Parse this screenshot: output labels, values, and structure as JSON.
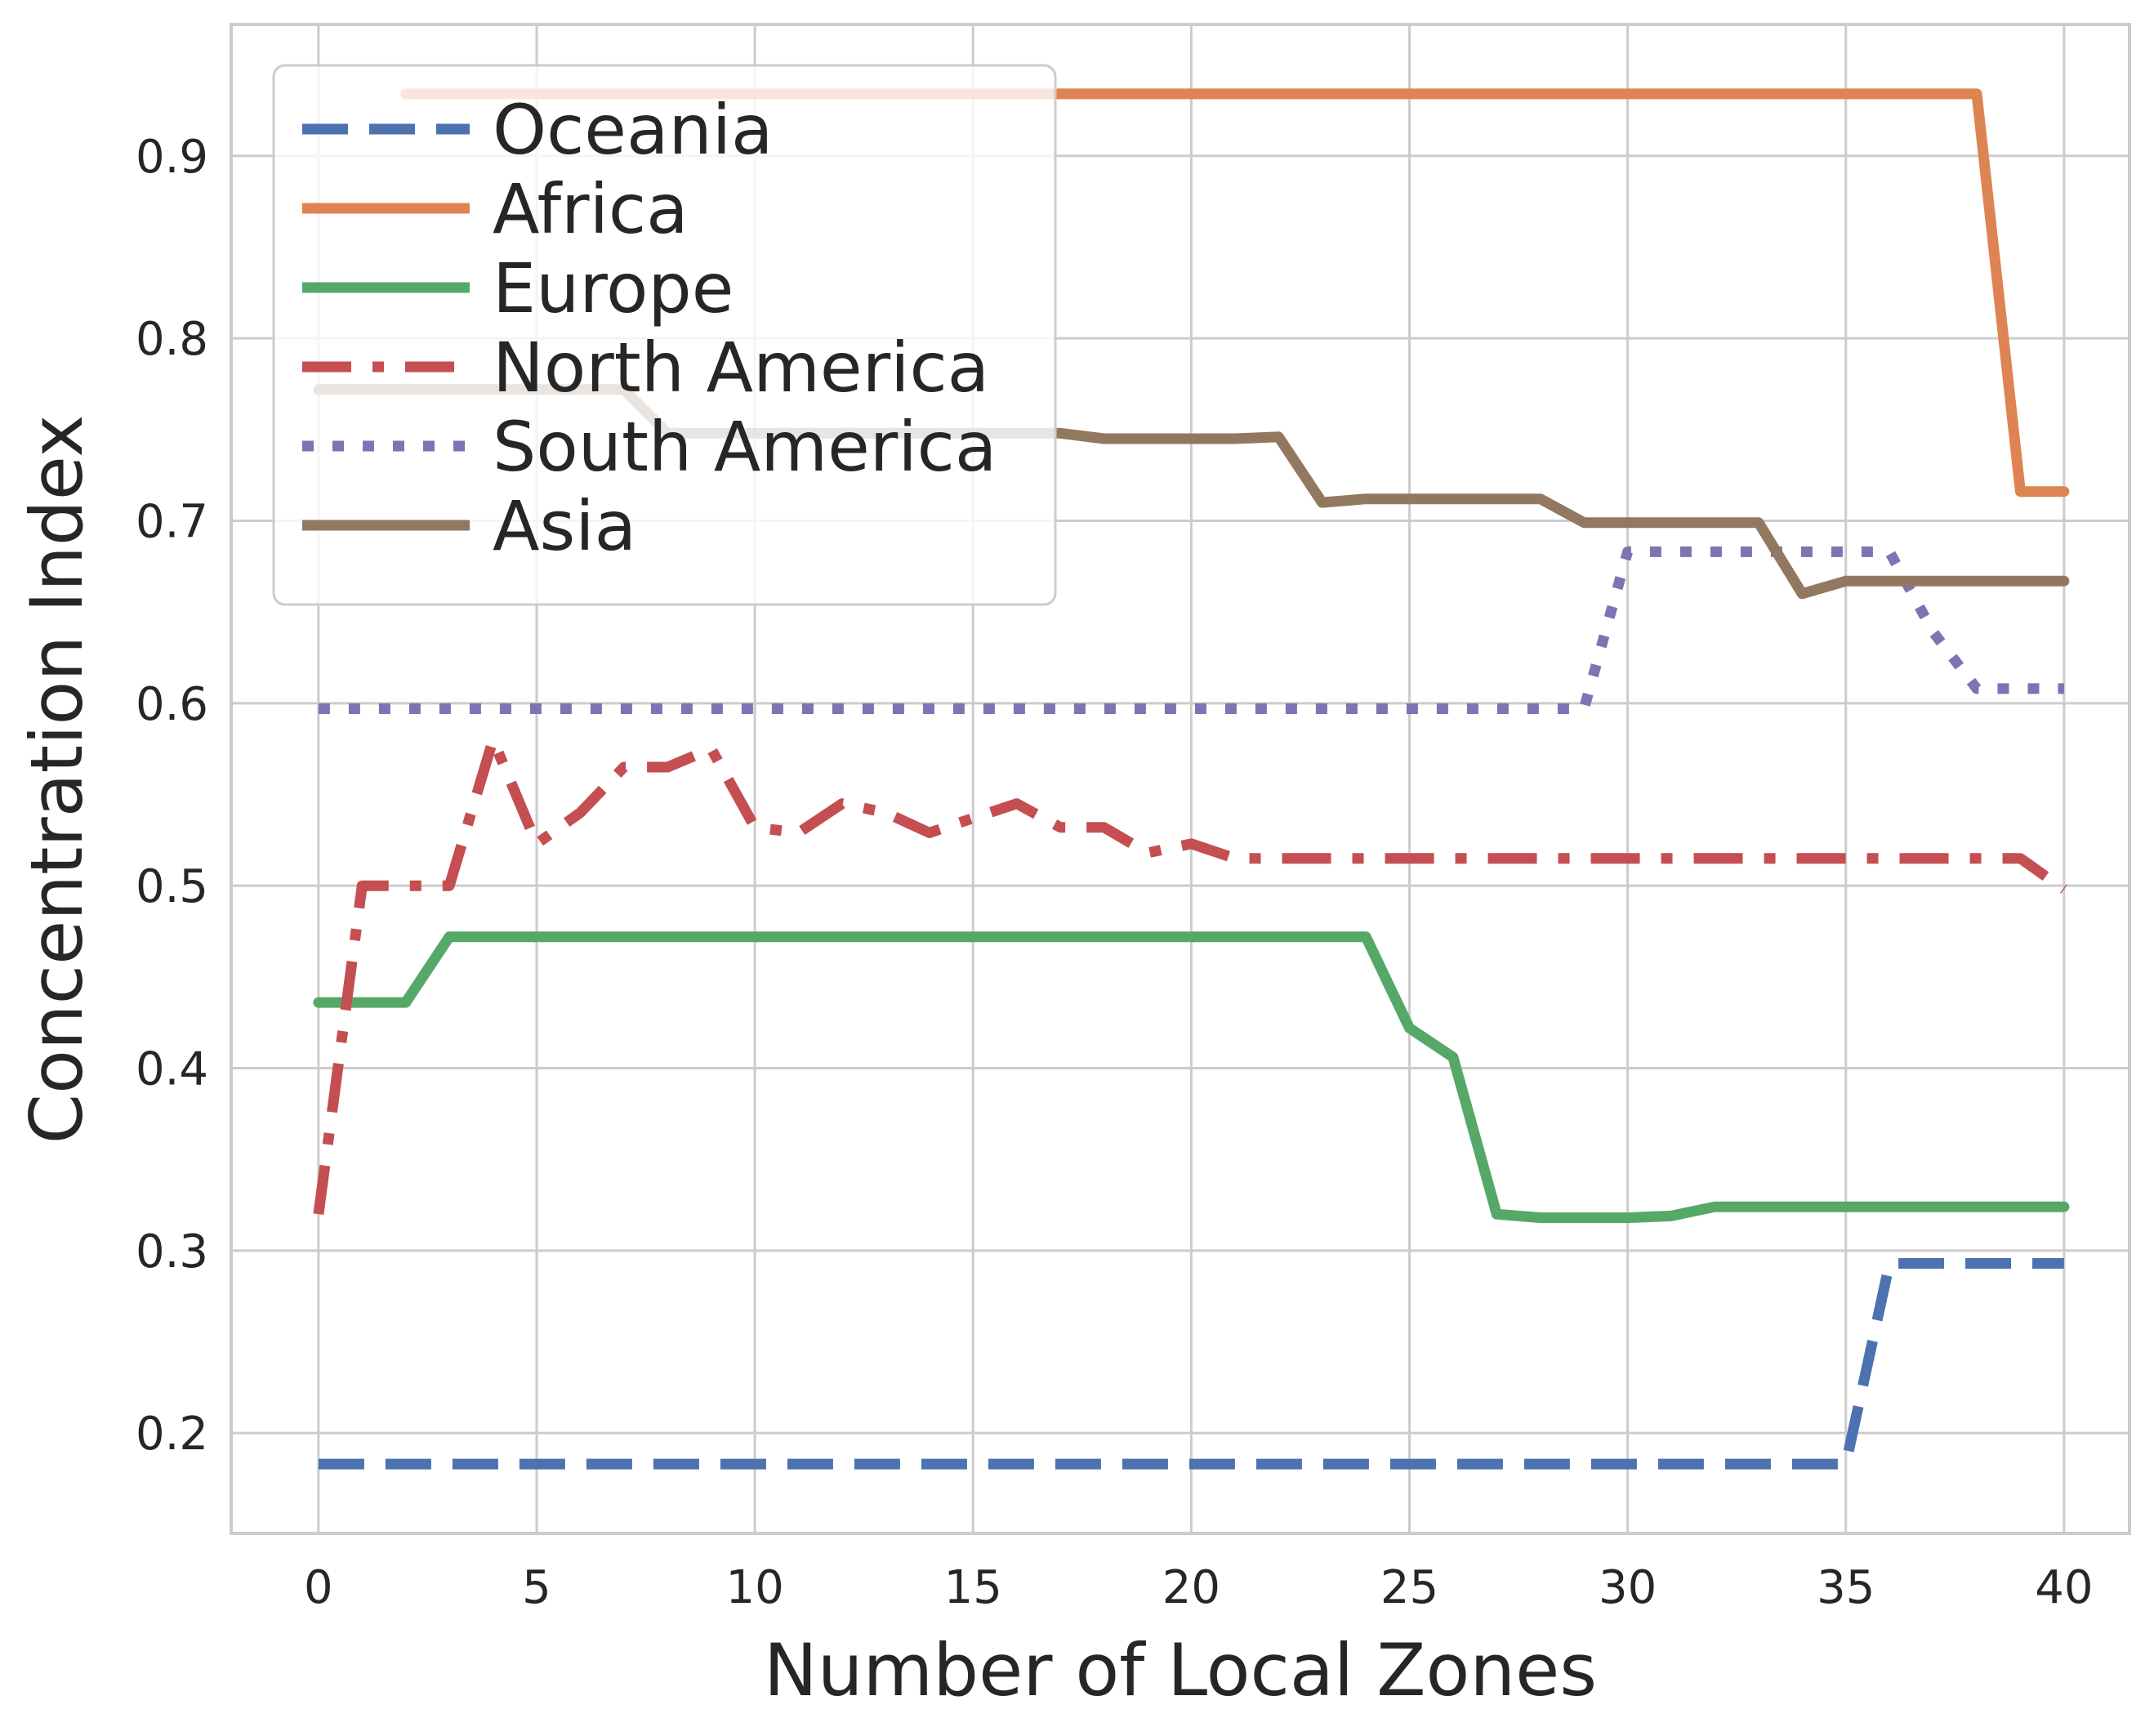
{
  "chart_data": {
    "type": "line",
    "xlabel": "Number of Local Zones",
    "ylabel": "Concentration Index",
    "xlim": [
      -2,
      41.5
    ],
    "ylim": [
      0.145,
      0.972
    ],
    "xticks": [
      0,
      5,
      10,
      15,
      20,
      25,
      30,
      35,
      40
    ],
    "xtick_labels": [
      "0",
      "5",
      "10",
      "15",
      "20",
      "25",
      "30",
      "35",
      "40"
    ],
    "yticks": [
      0.2,
      0.3,
      0.4,
      0.5,
      0.6,
      0.7,
      0.8,
      0.9
    ],
    "ytick_labels": [
      "0.2",
      "0.3",
      "0.4",
      "0.5",
      "0.6",
      "0.7",
      "0.8",
      "0.9"
    ],
    "grid": true,
    "legend_position": "top-left",
    "series": [
      {
        "name": "Oceania",
        "color": "#4c72b0",
        "style": "dashed",
        "x": [
          0,
          35,
          36,
          40
        ],
        "y": [
          0.183,
          0.183,
          0.293,
          0.293
        ]
      },
      {
        "name": "Africa",
        "color": "#dd8452",
        "style": "solid",
        "x": [
          2,
          38,
          39,
          40
        ],
        "y": [
          0.934,
          0.934,
          0.716,
          0.716
        ]
      },
      {
        "name": "Europe",
        "color": "#55a868",
        "style": "solid",
        "x": [
          0,
          1,
          2,
          3,
          24,
          25,
          26,
          27,
          28,
          29,
          30,
          31,
          32,
          33,
          40
        ],
        "y": [
          0.436,
          0.436,
          0.436,
          0.472,
          0.472,
          0.422,
          0.406,
          0.32,
          0.318,
          0.318,
          0.318,
          0.319,
          0.324,
          0.324,
          0.324
        ]
      },
      {
        "name": "North America",
        "color": "#c44e52",
        "style": "dashdot",
        "x": [
          0,
          1,
          2,
          3,
          4,
          5,
          6,
          7,
          8,
          9,
          10,
          11,
          12,
          13,
          14,
          15,
          16,
          17,
          18,
          19,
          20,
          21,
          39,
          40
        ],
        "y": [
          0.32,
          0.5,
          0.5,
          0.5,
          0.58,
          0.523,
          0.54,
          0.565,
          0.565,
          0.575,
          0.532,
          0.529,
          0.545,
          0.54,
          0.529,
          0.537,
          0.545,
          0.532,
          0.532,
          0.518,
          0.523,
          0.515,
          0.515,
          0.498
        ]
      },
      {
        "name": "South America",
        "color": "#8172b3",
        "style": "dotted",
        "x": [
          0,
          29,
          30,
          36,
          37,
          38,
          40
        ],
        "y": [
          0.597,
          0.597,
          0.683,
          0.683,
          0.639,
          0.608,
          0.608
        ]
      },
      {
        "name": "Asia",
        "color": "#937860",
        "style": "solid",
        "x": [
          0,
          7,
          8,
          17,
          18,
          21,
          22,
          23,
          24,
          28,
          29,
          33,
          34,
          35,
          40
        ],
        "y": [
          0.772,
          0.772,
          0.748,
          0.748,
          0.745,
          0.745,
          0.746,
          0.71,
          0.712,
          0.712,
          0.699,
          0.699,
          0.66,
          0.667,
          0.667
        ]
      }
    ]
  }
}
